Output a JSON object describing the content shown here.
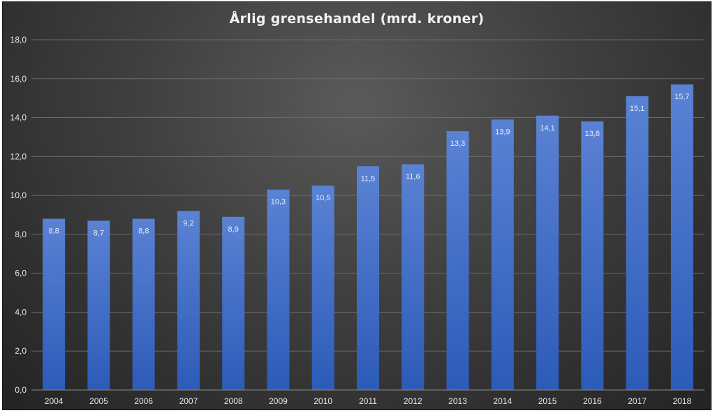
{
  "chart_data": {
    "type": "bar",
    "title": "Årlig grensehandel (mrd. kroner)",
    "xlabel": "",
    "ylabel": "",
    "categories": [
      "2004",
      "2005",
      "2006",
      "2007",
      "2008",
      "2009",
      "2010",
      "2011",
      "2012",
      "2013",
      "2014",
      "2015",
      "2016",
      "2017",
      "2018"
    ],
    "values": [
      8.8,
      8.7,
      8.8,
      9.2,
      8.9,
      10.3,
      10.5,
      11.5,
      11.6,
      13.3,
      13.9,
      14.1,
      13.8,
      15.1,
      15.7
    ],
    "data_labels": [
      "8,8",
      "8,7",
      "8,8",
      "9,2",
      "8,9",
      "10,3",
      "10,5",
      "11,5",
      "11,6",
      "13,3",
      "13,9",
      "14,1",
      "13,8",
      "15,1",
      "15,7"
    ],
    "ylim": [
      0,
      18
    ],
    "yticks": [
      0,
      2,
      4,
      6,
      8,
      10,
      12,
      14,
      16,
      18
    ],
    "ytick_labels": [
      "0,0",
      "2,0",
      "4,0",
      "6,0",
      "8,0",
      "10,0",
      "12,0",
      "14,0",
      "16,0",
      "18,0"
    ],
    "grid": true,
    "legend": false,
    "colors": {
      "bar_top": "#5a82d4",
      "bar_bottom": "#2c5bb8",
      "grid": "#6a6a6a",
      "axis": "#8a8a8a",
      "text": "#e6e6e6"
    }
  }
}
